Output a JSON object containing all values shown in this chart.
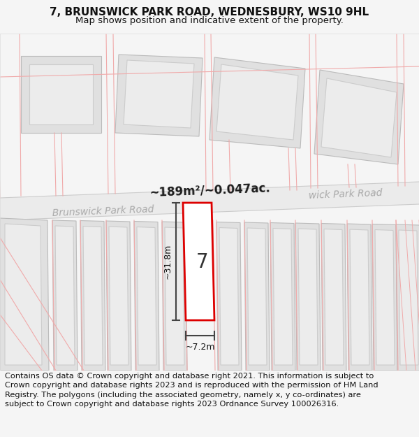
{
  "title_line1": "7, BRUNSWICK PARK ROAD, WEDNESBURY, WS10 9HL",
  "title_line2": "Map shows position and indicative extent of the property.",
  "footer_text": "Contains OS data © Crown copyright and database right 2021. This information is subject to Crown copyright and database rights 2023 and is reproduced with the permission of HM Land Registry. The polygons (including the associated geometry, namely x, y co-ordinates) are subject to Crown copyright and database rights 2023 Ordnance Survey 100026316.",
  "area_label": "~189m²/~0.047ac.",
  "road_name_left": "Brunswick Park Road",
  "road_name_right": "wick Park Road",
  "property_number": "7",
  "dim_height": "~31.8m",
  "dim_width": "~7.2m",
  "bg_color": "#f5f5f5",
  "map_bg": "#ffffff",
  "building_fill": "#e0e0e0",
  "building_edge": "#bbbbbb",
  "highlight_fill": "#ffffff",
  "highlight_edge": "#dd0000",
  "pink_line_color": "#f0aaaa",
  "road_band_color": "#ebebeb",
  "road_edge_color": "#cccccc",
  "text_color": "#111111",
  "road_text_color": "#aaaaaa",
  "dim_line_color": "#444444",
  "title_fontsize": 11,
  "subtitle_fontsize": 9.5,
  "footer_fontsize": 8.2
}
